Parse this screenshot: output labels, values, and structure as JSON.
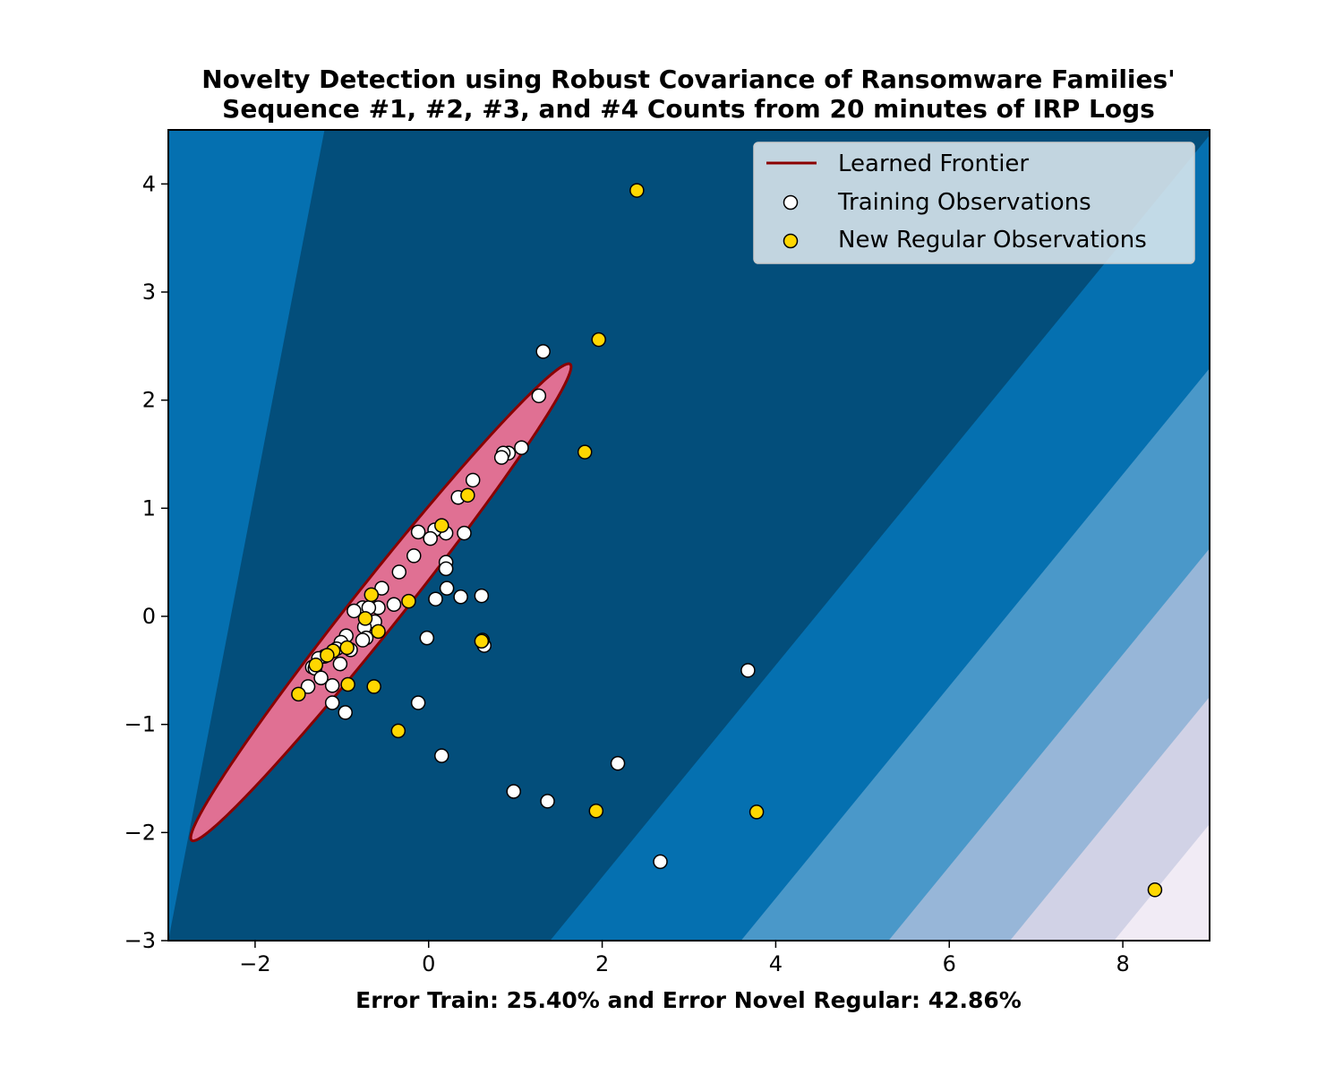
{
  "chart_data": {
    "type": "scatter",
    "title_lines": [
      "Novelty Detection using Robust Covariance of Ransomware Families'",
      "Sequence #1, #2, #3, and #4 Counts from 20 minutes of IRP Logs"
    ],
    "xlabel": "Error Train: 25.40% and Error Novel Regular: 42.86%",
    "ylabel": "",
    "xlim": [
      -3,
      9
    ],
    "ylim": [
      -3,
      4.5
    ],
    "xticks": [
      {
        "value": -2,
        "label": "−2"
      },
      {
        "value": 0,
        "label": "0"
      },
      {
        "value": 2,
        "label": "2"
      },
      {
        "value": 4,
        "label": "4"
      },
      {
        "value": 6,
        "label": "6"
      },
      {
        "value": 8,
        "label": "8"
      }
    ],
    "yticks": [
      {
        "value": -3,
        "label": "−3"
      },
      {
        "value": -2,
        "label": "−2"
      },
      {
        "value": -1,
        "label": "−1"
      },
      {
        "value": 0,
        "label": "0"
      },
      {
        "value": 1,
        "label": "1"
      },
      {
        "value": 2,
        "label": "2"
      },
      {
        "value": 3,
        "label": "3"
      },
      {
        "value": 4,
        "label": "4"
      }
    ],
    "legend": {
      "position": "upper-right",
      "entries": [
        "Learned Frontier",
        "Training Observations",
        "New Regular Observations"
      ]
    },
    "background_bands": {
      "colors": [
        "#034e7b",
        "#0570b0",
        "#4a98c9",
        "#97b6d8",
        "#d1d2e6",
        "#f1ebf5"
      ],
      "boundaries_x_at_y_minus3": [
        1.4,
        3.6,
        5.3,
        6.7,
        7.9
      ],
      "upper_left_band": {
        "x_at_y_minus3": -3.0,
        "x_at_y_4_5": -1.2
      },
      "band_slope": 1.02
    },
    "frontier": {
      "label": "Learned Frontier",
      "shape": "ellipse",
      "center": [
        -0.55,
        0.13
      ],
      "semi_major": 3.1,
      "semi_minor": 0.25,
      "angle_deg": 45.2,
      "line_color": "#8b0000",
      "fill_color": "#e07093"
    },
    "series": [
      {
        "name": "Training Observations",
        "color": "#ffffff",
        "edge_color": "#000000",
        "points": [
          [
            1.32,
            2.45
          ],
          [
            1.27,
            2.04
          ],
          [
            1.07,
            1.56
          ],
          [
            0.92,
            1.51
          ],
          [
            0.86,
            1.51
          ],
          [
            0.84,
            1.47
          ],
          [
            0.51,
            1.26
          ],
          [
            0.34,
            1.1
          ],
          [
            0.41,
            0.77
          ],
          [
            0.2,
            0.77
          ],
          [
            0.07,
            0.8
          ],
          [
            -0.12,
            0.78
          ],
          [
            0.02,
            0.72
          ],
          [
            -0.17,
            0.56
          ],
          [
            0.2,
            0.5
          ],
          [
            0.2,
            0.44
          ],
          [
            -0.34,
            0.41
          ],
          [
            0.21,
            0.26
          ],
          [
            -0.54,
            0.26
          ],
          [
            0.37,
            0.18
          ],
          [
            0.61,
            0.19
          ],
          [
            0.08,
            0.16
          ],
          [
            -0.4,
            0.11
          ],
          [
            -0.58,
            0.08
          ],
          [
            -0.76,
            0.08
          ],
          [
            -0.69,
            0.08
          ],
          [
            -0.86,
            0.05
          ],
          [
            -0.62,
            -0.05
          ],
          [
            -0.74,
            -0.1
          ],
          [
            -0.72,
            -0.2
          ],
          [
            -0.76,
            -0.22
          ],
          [
            -0.95,
            -0.18
          ],
          [
            -0.02,
            -0.2
          ],
          [
            -1.01,
            -0.24
          ],
          [
            -1.06,
            -0.3
          ],
          [
            -0.9,
            -0.31
          ],
          [
            -1.2,
            -0.37
          ],
          [
            -1.27,
            -0.39
          ],
          [
            -1.02,
            -0.44
          ],
          [
            -1.34,
            -0.47
          ],
          [
            -1.31,
            -0.48
          ],
          [
            -1.24,
            -0.57
          ],
          [
            -1.11,
            -0.64
          ],
          [
            -1.39,
            -0.65
          ],
          [
            -1.11,
            -0.8
          ],
          [
            -0.96,
            -0.89
          ],
          [
            0.64,
            -0.27
          ],
          [
            0.62,
            -0.22
          ],
          [
            3.68,
            -0.5
          ],
          [
            -0.12,
            -0.8
          ],
          [
            0.15,
            -1.29
          ],
          [
            2.18,
            -1.36
          ],
          [
            0.98,
            -1.62
          ],
          [
            1.37,
            -1.71
          ],
          [
            2.67,
            -2.27
          ]
        ]
      },
      {
        "name": "New Regular Observations",
        "color": "#ffd700",
        "edge_color": "#000000",
        "points": [
          [
            2.4,
            3.94
          ],
          [
            1.96,
            2.56
          ],
          [
            1.8,
            1.52
          ],
          [
            0.45,
            1.12
          ],
          [
            0.15,
            0.84
          ],
          [
            -0.66,
            0.2
          ],
          [
            -0.23,
            0.14
          ],
          [
            -0.73,
            -0.02
          ],
          [
            -0.58,
            -0.14
          ],
          [
            0.61,
            -0.23
          ],
          [
            -0.94,
            -0.29
          ],
          [
            -1.1,
            -0.32
          ],
          [
            -1.17,
            -0.36
          ],
          [
            -1.3,
            -0.45
          ],
          [
            -0.93,
            -0.63
          ],
          [
            -0.63,
            -0.65
          ],
          [
            -1.5,
            -0.72
          ],
          [
            -0.35,
            -1.06
          ],
          [
            1.93,
            -1.8
          ],
          [
            3.78,
            -1.81
          ],
          [
            8.37,
            -2.53
          ]
        ]
      }
    ]
  }
}
